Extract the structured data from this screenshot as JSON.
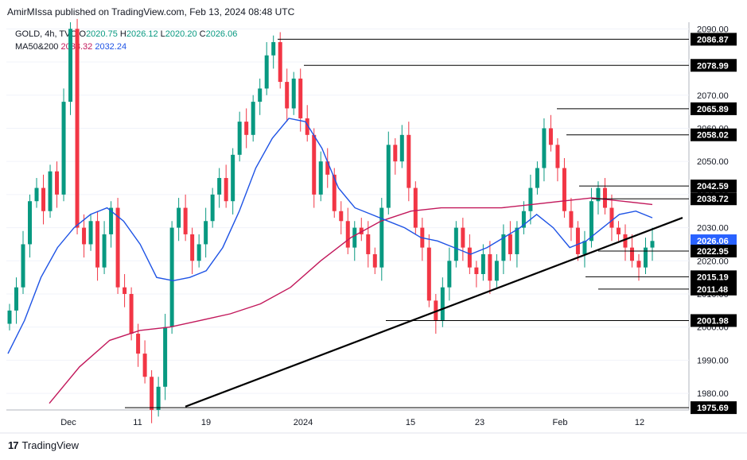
{
  "header": {
    "publisher_line": "AmirMIssa published on TradingView.com, Feb 13, 2024 08:48 UTC"
  },
  "legend": {
    "symbol": "GOLD, 4h, TVC",
    "ohlc": {
      "o_label": "O",
      "o": "2020.75",
      "h_label": "H",
      "h": "2026.12",
      "l_label": "L",
      "l": "2020.20",
      "c_label": "C",
      "c": "2026.06"
    },
    "ma_label": "MA50&200",
    "ma50_value": "2032.24",
    "ma200_value": "2038.32"
  },
  "footer": {
    "brand": "TradingView",
    "logo": "17"
  },
  "colors": {
    "up": "#089981",
    "down": "#f23645",
    "ma50": "#1e53e5",
    "ma200": "#c2185b",
    "level_line": "#000000",
    "trendline": "#000000",
    "grid": "#f0f3fa"
  },
  "chart_data": {
    "type": "candlestick",
    "symbol": "GOLD",
    "timeframe": "4h",
    "ylim": [
      1975,
      2092
    ],
    "y_ticks": [
      "2090.00",
      "2080.00",
      "2070.00",
      "2060.00",
      "2050.00",
      "2040.00",
      "2030.00",
      "2020.00",
      "2010.00",
      "2000.00",
      "1990.00",
      "1980.00"
    ],
    "x_ticks": [
      "Dec",
      "11",
      "19",
      "2024",
      "15",
      "23",
      "Feb",
      "12"
    ],
    "levels": [
      {
        "label": "2086.87",
        "value": 2086.87
      },
      {
        "label": "2078.99",
        "value": 2078.99
      },
      {
        "label": "2065.89",
        "value": 2065.89
      },
      {
        "label": "2058.02",
        "value": 2058.02
      },
      {
        "label": "2042.59",
        "value": 2042.59
      },
      {
        "label": "2038.72",
        "value": 2038.72
      },
      {
        "label": "2026.06",
        "value": 2026.06
      },
      {
        "label": "2022.95",
        "value": 2022.95
      },
      {
        "label": "2015.19",
        "value": 2015.19
      },
      {
        "label": "2011.48",
        "value": 2011.48
      },
      {
        "label": "2001.98",
        "value": 2001.98
      },
      {
        "label": "1975.69",
        "value": 1975.69
      }
    ],
    "close_series": [
      2005,
      2012,
      2025,
      2038,
      2042,
      2035,
      2047,
      2040,
      2068,
      2090,
      2030,
      2025,
      2032,
      2018,
      2028,
      2036,
      2012,
      2010,
      1998,
      1992,
      1985,
      1975,
      1982,
      2000,
      2030,
      2036,
      2028,
      2020,
      2025,
      2032,
      2040,
      2045,
      2038,
      2052,
      2062,
      2058,
      2068,
      2072,
      2082,
      2086,
      2074,
      2066,
      2075,
      2063,
      2058,
      2040,
      2050,
      2046,
      2035,
      2032,
      2024,
      2030,
      2028,
      2022,
      2018,
      2036,
      2055,
      2050,
      2058,
      2042,
      2030,
      2024,
      2008,
      2002,
      2012,
      2020,
      2030,
      2024,
      2018,
      2016,
      2022,
      2014,
      2020,
      2028,
      2022,
      2030,
      2035,
      2042,
      2048,
      2060,
      2055,
      2048,
      2035,
      2030,
      2022,
      2026,
      2038,
      2042,
      2036,
      2030,
      2028,
      2024,
      2020,
      2018,
      2024,
      2026
    ],
    "ma50": [
      1992,
      2002,
      2015,
      2024,
      2030,
      2034,
      2036,
      2032,
      2025,
      2015,
      2014,
      2015,
      2017,
      2024,
      2035,
      2048,
      2057,
      2063,
      2062,
      2054,
      2042,
      2036,
      2034,
      2032,
      2030,
      2027,
      2026,
      2024,
      2022,
      2024,
      2027,
      2030,
      2034,
      2030,
      2024,
      2026,
      2030,
      2034,
      2035,
      2033
    ],
    "ma200": [
      1977,
      1988,
      1996,
      1999,
      2000,
      2002,
      2004,
      2007,
      2012,
      2020,
      2027,
      2032,
      2035,
      2036,
      2036,
      2036,
      2037,
      2038,
      2039,
      2038,
      2037
    ],
    "trendline": {
      "from": {
        "label": "19",
        "value": 1976
      },
      "to": {
        "label": "12",
        "value": 2028
      }
    }
  }
}
